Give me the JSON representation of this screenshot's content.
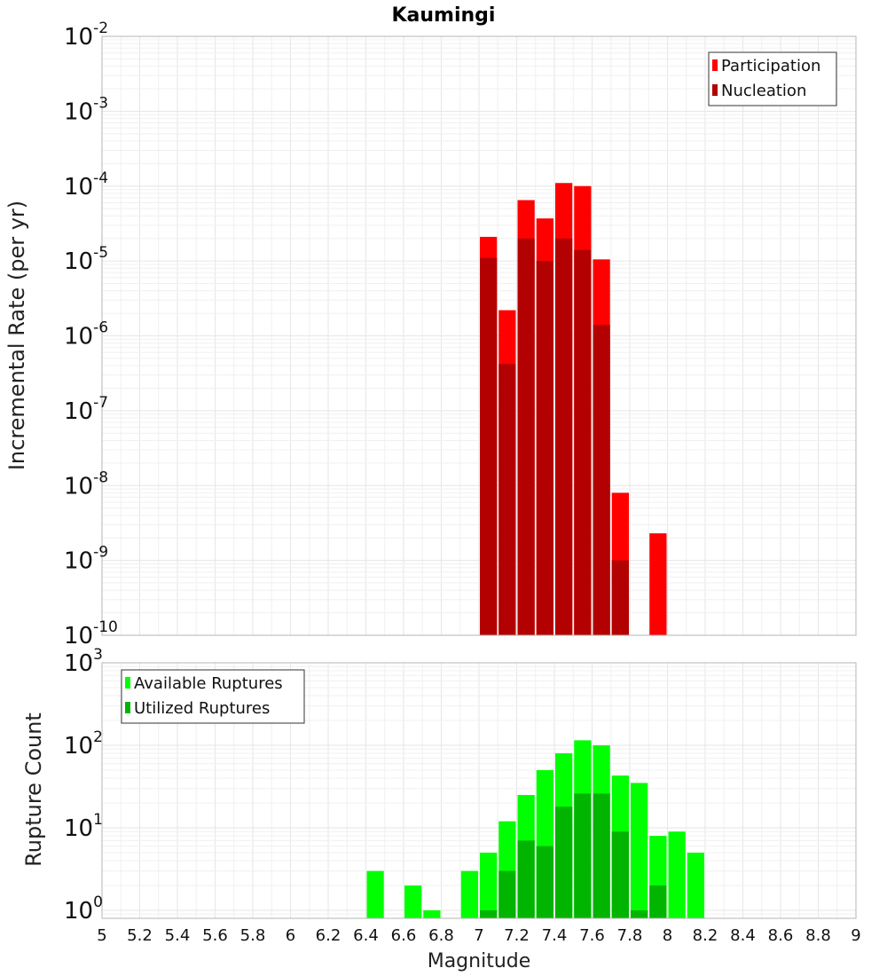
{
  "chart_data": [
    {
      "type": "bar",
      "title": "Kaumingi",
      "ylabel": "Incremental Rate (per yr)",
      "xlabel": "",
      "yscale": "log",
      "ylim": [
        1e-10,
        0.01
      ],
      "xlim": [
        5,
        9
      ],
      "legend_position": "top-right",
      "bin_width": 0.1,
      "series": [
        {
          "name": "Participation",
          "color": "#ff0000",
          "x": [
            7.05,
            7.15,
            7.25,
            7.35,
            7.45,
            7.55,
            7.65,
            7.75,
            7.95
          ],
          "values": [
            2.1e-05,
            2.2e-06,
            6.5e-05,
            3.7e-05,
            0.00011,
            0.0001,
            1.05e-05,
            8e-09,
            2.3e-09
          ]
        },
        {
          "name": "Nucleation",
          "color": "#b30000",
          "x": [
            7.05,
            7.15,
            7.25,
            7.35,
            7.45,
            7.55,
            7.65,
            7.75,
            7.95
          ],
          "values": [
            1.1e-05,
            4.2e-07,
            2e-05,
            1e-05,
            2e-05,
            1.4e-05,
            1.4e-06,
            1e-09,
            1e-10
          ]
        }
      ],
      "y_ticks": [
        {
          "base": "10",
          "exp": "-2"
        },
        {
          "base": "10",
          "exp": "-3"
        },
        {
          "base": "10",
          "exp": "-4"
        },
        {
          "base": "10",
          "exp": "-5"
        },
        {
          "base": "10",
          "exp": "-6"
        },
        {
          "base": "10",
          "exp": "-7"
        },
        {
          "base": "10",
          "exp": "-8"
        },
        {
          "base": "10",
          "exp": "-9"
        },
        {
          "base": "10",
          "exp": "-10"
        }
      ]
    },
    {
      "type": "bar",
      "title": "",
      "ylabel": "Rupture Count",
      "xlabel": "Magnitude",
      "yscale": "log",
      "ylim": [
        0.8,
        1000
      ],
      "xlim": [
        5,
        9
      ],
      "legend_position": "top-left",
      "bin_width": 0.1,
      "series": [
        {
          "name": "Available Ruptures",
          "color": "#00ff00",
          "x": [
            6.45,
            6.65,
            6.75,
            6.95,
            7.05,
            7.15,
            7.25,
            7.35,
            7.45,
            7.55,
            7.65,
            7.75,
            7.85,
            7.95,
            8.05,
            8.15
          ],
          "values": [
            3,
            2,
            1,
            3,
            5,
            12,
            25,
            50,
            80,
            115,
            100,
            43,
            35,
            8,
            9,
            5
          ]
        },
        {
          "name": "Utilized Ruptures",
          "color": "#00b400",
          "x": [
            7.05,
            7.15,
            7.25,
            7.35,
            7.45,
            7.55,
            7.65,
            7.75,
            7.85,
            7.95
          ],
          "values": [
            1,
            3,
            7,
            6,
            18,
            26,
            26,
            9,
            1,
            2
          ]
        }
      ],
      "y_ticks": [
        {
          "base": "10",
          "exp": "3"
        },
        {
          "base": "10",
          "exp": "2"
        },
        {
          "base": "10",
          "exp": "1"
        },
        {
          "base": "10",
          "exp": "0"
        }
      ],
      "x_ticks": [
        "5",
        "5.2",
        "5.4",
        "5.6",
        "5.8",
        "6",
        "6.2",
        "6.4",
        "6.6",
        "6.8",
        "7",
        "7.2",
        "7.4",
        "7.6",
        "7.8",
        "8",
        "8.2",
        "8.4",
        "8.6",
        "8.8",
        "9"
      ]
    }
  ]
}
